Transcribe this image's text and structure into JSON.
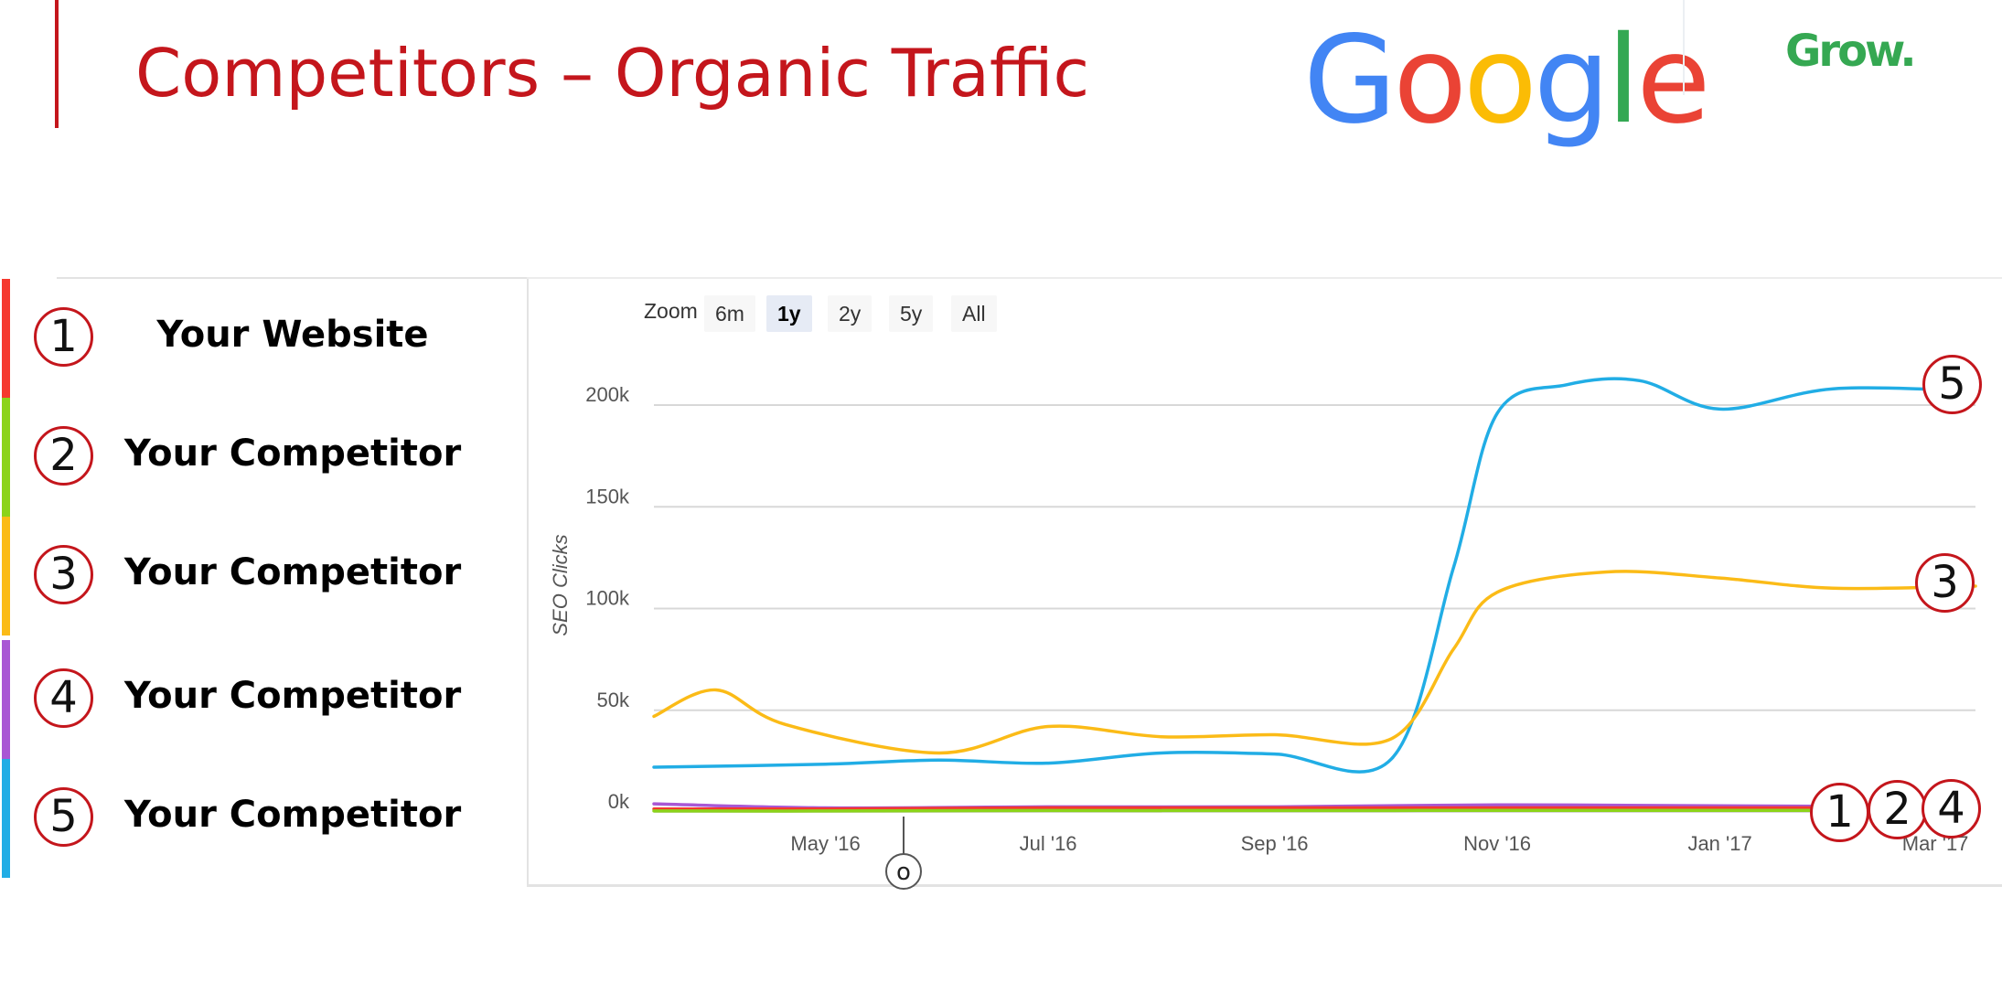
{
  "slide": {
    "title": "Competitors – Organic Traffic"
  },
  "logos": {
    "google": {
      "text": "Google",
      "colors": [
        "#4285f4",
        "#ea4335",
        "#fbbc05",
        "#4285f4",
        "#34a853",
        "#ea4335"
      ]
    },
    "grow": {
      "text": "Grow."
    }
  },
  "legend": [
    {
      "number": "1",
      "label": "Your Website",
      "color": "#f5382e"
    },
    {
      "number": "2",
      "label": "Your Competitor",
      "color": "#8cd31a"
    },
    {
      "number": "3",
      "label": "Your Competitor",
      "color": "#fbbb17"
    },
    {
      "number": "4",
      "label": "Your Competitor",
      "color": "#a957d4"
    },
    {
      "number": "5",
      "label": "Your Competitor",
      "color": "#21ade5"
    }
  ],
  "zoom": {
    "label": "Zoom",
    "options": [
      "6m",
      "1y",
      "2y",
      "5y",
      "All"
    ],
    "selected": "1y"
  },
  "flag_label": "o",
  "chart_data": {
    "type": "line",
    "title": "",
    "xlabel": "",
    "ylabel": "SEO Clicks",
    "xlim": [
      "2016-03-15",
      "2017-03-12"
    ],
    "ylim": [
      0,
      200000
    ],
    "yticks": [
      0,
      50000,
      100000,
      150000,
      200000
    ],
    "ytick_labels": [
      "0k",
      "50k",
      "100k",
      "150k",
      "200k"
    ],
    "xticks": [
      "2016-05-01",
      "2016-07-01",
      "2016-09-01",
      "2016-11-01",
      "2017-01-01",
      "2017-03-01"
    ],
    "xtick_labels": [
      "May '16",
      "Jul '16",
      "Sep '16",
      "Nov '16",
      "Jan '17",
      "Mar '17"
    ],
    "grid": true,
    "legend": "none",
    "series": [
      {
        "id": "5",
        "color": "#21ade5",
        "x": [
          "2016-03-15",
          "2016-05-01",
          "2016-06-01",
          "2016-07-01",
          "2016-08-01",
          "2016-09-01",
          "2016-10-03",
          "2016-10-20",
          "2016-11-01",
          "2016-11-20",
          "2016-12-10",
          "2017-01-01",
          "2017-02-01",
          "2017-03-12"
        ],
        "y": [
          22000,
          23500,
          25500,
          24000,
          29000,
          28500,
          26000,
          120000,
          196000,
          210000,
          212000,
          198000,
          208000,
          207000
        ]
      },
      {
        "id": "3",
        "color": "#fbbb17",
        "x": [
          "2016-03-15",
          "2016-04-01",
          "2016-04-20",
          "2016-06-01",
          "2016-07-01",
          "2016-08-01",
          "2016-09-01",
          "2016-10-03",
          "2016-10-20",
          "2016-11-01",
          "2016-12-01",
          "2017-01-01",
          "2017-02-01",
          "2017-03-12"
        ],
        "y": [
          47000,
          60000,
          43000,
          29000,
          42000,
          37000,
          38000,
          36000,
          80000,
          108000,
          118000,
          115000,
          110000,
          111000
        ]
      },
      {
        "id": "4",
        "color": "#a957d4",
        "x": [
          "2016-03-15",
          "2016-05-01",
          "2016-07-01",
          "2016-09-01",
          "2016-11-01",
          "2017-01-01",
          "2017-03-12"
        ],
        "y": [
          4000,
          2000,
          2500,
          2500,
          3500,
          3000,
          2500
        ]
      },
      {
        "id": "1",
        "color": "#f5382e",
        "x": [
          "2016-03-15",
          "2016-05-01",
          "2016-07-01",
          "2016-09-01",
          "2016-11-01",
          "2017-01-01",
          "2017-03-12"
        ],
        "y": [
          1500,
          1500,
          2000,
          2000,
          2000,
          2000,
          2000
        ]
      },
      {
        "id": "2",
        "color": "#8cd31a",
        "x": [
          "2016-03-15",
          "2016-05-01",
          "2016-07-01",
          "2016-09-01",
          "2016-11-01",
          "2017-01-01",
          "2017-03-12"
        ],
        "y": [
          500,
          500,
          700,
          700,
          800,
          800,
          800
        ]
      }
    ],
    "annotations": [
      {
        "series": "5",
        "text": "5"
      },
      {
        "series": "3",
        "text": "3"
      },
      {
        "series": "1",
        "text": "1"
      },
      {
        "series": "2",
        "text": "2"
      },
      {
        "series": "4",
        "text": "4"
      }
    ]
  }
}
